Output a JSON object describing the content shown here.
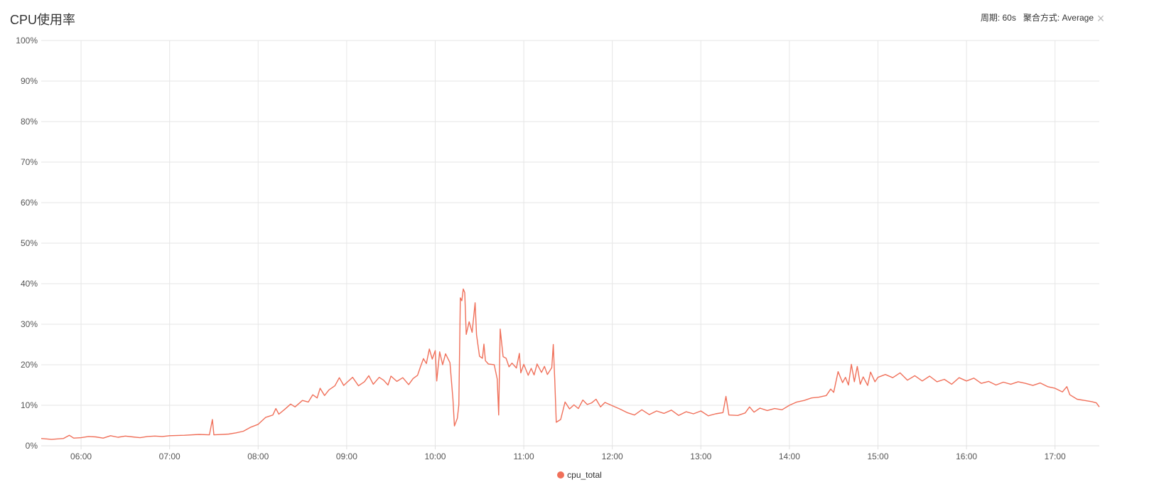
{
  "header": {
    "title": "CPU使用率",
    "period_label": "周期: 60s",
    "aggregation_label": "聚合方式: Average",
    "close_icon": "close-icon"
  },
  "chart_data": {
    "type": "line",
    "title": "CPU使用率",
    "xlabel": "",
    "ylabel": "",
    "y_ticks": [
      "0%",
      "10%",
      "20%",
      "30%",
      "40%",
      "50%",
      "60%",
      "70%",
      "80%",
      "90%",
      "100%"
    ],
    "ylim": [
      0,
      100
    ],
    "x_ticks": [
      "06:00",
      "07:00",
      "08:00",
      "09:00",
      "10:00",
      "11:00",
      "12:00",
      "13:00",
      "14:00",
      "15:00",
      "16:00",
      "17:00"
    ],
    "xlim": [
      "05:33",
      "17:30"
    ],
    "grid": true,
    "legend_position": "bottom",
    "series": [
      {
        "name": "cpu_total",
        "color": "#f0705a",
        "points": [
          [
            "05:33",
            1.8
          ],
          [
            "05:40",
            1.6
          ],
          [
            "05:48",
            1.8
          ],
          [
            "05:52",
            2.6
          ],
          [
            "05:55",
            1.9
          ],
          [
            "06:00",
            2.0
          ],
          [
            "06:05",
            2.3
          ],
          [
            "06:10",
            2.2
          ],
          [
            "06:15",
            1.9
          ],
          [
            "06:20",
            2.5
          ],
          [
            "06:25",
            2.1
          ],
          [
            "06:30",
            2.4
          ],
          [
            "06:35",
            2.2
          ],
          [
            "06:40",
            2.0
          ],
          [
            "06:45",
            2.3
          ],
          [
            "06:50",
            2.4
          ],
          [
            "06:55",
            2.3
          ],
          [
            "07:00",
            2.5
          ],
          [
            "07:10",
            2.6
          ],
          [
            "07:20",
            2.8
          ],
          [
            "07:27",
            2.7
          ],
          [
            "07:29",
            6.5
          ],
          [
            "07:30",
            2.7
          ],
          [
            "07:40",
            2.9
          ],
          [
            "07:45",
            3.2
          ],
          [
            "07:50",
            3.6
          ],
          [
            "07:55",
            4.6
          ],
          [
            "08:00",
            5.3
          ],
          [
            "08:05",
            7.0
          ],
          [
            "08:10",
            7.6
          ],
          [
            "08:12",
            9.2
          ],
          [
            "08:14",
            7.8
          ],
          [
            "08:18",
            9.0
          ],
          [
            "08:22",
            10.3
          ],
          [
            "08:25",
            9.6
          ],
          [
            "08:30",
            11.2
          ],
          [
            "08:34",
            10.8
          ],
          [
            "08:37",
            12.6
          ],
          [
            "08:40",
            11.8
          ],
          [
            "08:42",
            14.2
          ],
          [
            "08:45",
            12.4
          ],
          [
            "08:48",
            13.8
          ],
          [
            "08:52",
            14.8
          ],
          [
            "08:55",
            16.8
          ],
          [
            "08:58",
            14.9
          ],
          [
            "09:00",
            15.6
          ],
          [
            "09:04",
            16.9
          ],
          [
            "09:08",
            14.8
          ],
          [
            "09:12",
            15.8
          ],
          [
            "09:15",
            17.3
          ],
          [
            "09:18",
            15.2
          ],
          [
            "09:22",
            16.9
          ],
          [
            "09:25",
            16.2
          ],
          [
            "09:28",
            15.0
          ],
          [
            "09:30",
            17.2
          ],
          [
            "09:34",
            15.9
          ],
          [
            "09:38",
            16.8
          ],
          [
            "09:42",
            15.1
          ],
          [
            "09:45",
            16.6
          ],
          [
            "09:48",
            17.4
          ],
          [
            "09:50",
            19.5
          ],
          [
            "09:52",
            21.5
          ],
          [
            "09:54",
            20.3
          ],
          [
            "09:56",
            23.9
          ],
          [
            "09:58",
            21.4
          ],
          [
            "10:00",
            23.5
          ],
          [
            "10:01",
            16.0
          ],
          [
            "10:03",
            23.2
          ],
          [
            "10:05",
            20.0
          ],
          [
            "10:07",
            22.7
          ],
          [
            "10:10",
            20.5
          ],
          [
            "10:12",
            11.5
          ],
          [
            "10:13",
            4.9
          ],
          [
            "10:15",
            6.8
          ],
          [
            "10:16",
            10.1
          ],
          [
            "10:17",
            36.5
          ],
          [
            "10:18",
            35.8
          ],
          [
            "10:19",
            38.7
          ],
          [
            "10:20",
            37.8
          ],
          [
            "10:21",
            27.5
          ],
          [
            "10:23",
            30.6
          ],
          [
            "10:25",
            28.0
          ],
          [
            "10:27",
            35.3
          ],
          [
            "10:28",
            27.4
          ],
          [
            "10:30",
            22.1
          ],
          [
            "10:32",
            21.6
          ],
          [
            "10:33",
            25.1
          ],
          [
            "10:34",
            21.0
          ],
          [
            "10:36",
            20.2
          ],
          [
            "10:40",
            20.0
          ],
          [
            "10:42",
            16.5
          ],
          [
            "10:43",
            7.6
          ],
          [
            "10:44",
            28.8
          ],
          [
            "10:46",
            22.0
          ],
          [
            "10:48",
            21.6
          ],
          [
            "10:50",
            19.5
          ],
          [
            "10:52",
            20.4
          ],
          [
            "10:55",
            19.2
          ],
          [
            "10:57",
            22.8
          ],
          [
            "10:58",
            18.0
          ],
          [
            "11:00",
            20.1
          ],
          [
            "11:03",
            17.4
          ],
          [
            "11:05",
            19.1
          ],
          [
            "11:07",
            17.5
          ],
          [
            "11:09",
            20.2
          ],
          [
            "11:12",
            18.1
          ],
          [
            "11:14",
            19.6
          ],
          [
            "11:16",
            17.6
          ],
          [
            "11:19",
            19.3
          ],
          [
            "11:20",
            25.0
          ],
          [
            "11:21",
            16.2
          ],
          [
            "11:22",
            5.8
          ],
          [
            "11:25",
            6.5
          ],
          [
            "11:28",
            10.8
          ],
          [
            "11:31",
            9.1
          ],
          [
            "11:34",
            10.1
          ],
          [
            "11:37",
            9.2
          ],
          [
            "11:40",
            11.3
          ],
          [
            "11:43",
            10.2
          ],
          [
            "11:46",
            10.6
          ],
          [
            "11:49",
            11.5
          ],
          [
            "11:52",
            9.6
          ],
          [
            "11:55",
            10.7
          ],
          [
            "12:00",
            9.9
          ],
          [
            "12:05",
            9.1
          ],
          [
            "12:10",
            8.2
          ],
          [
            "12:15",
            7.6
          ],
          [
            "12:20",
            8.9
          ],
          [
            "12:25",
            7.7
          ],
          [
            "12:30",
            8.6
          ],
          [
            "12:35",
            8.0
          ],
          [
            "12:40",
            8.8
          ],
          [
            "12:45",
            7.5
          ],
          [
            "12:50",
            8.4
          ],
          [
            "12:55",
            7.9
          ],
          [
            "13:00",
            8.6
          ],
          [
            "13:05",
            7.4
          ],
          [
            "13:10",
            7.9
          ],
          [
            "13:15",
            8.2
          ],
          [
            "13:17",
            12.2
          ],
          [
            "13:19",
            7.6
          ],
          [
            "13:25",
            7.5
          ],
          [
            "13:30",
            8.1
          ],
          [
            "13:33",
            9.6
          ],
          [
            "13:36",
            8.3
          ],
          [
            "13:40",
            9.3
          ],
          [
            "13:45",
            8.7
          ],
          [
            "13:50",
            9.2
          ],
          [
            "13:55",
            8.9
          ],
          [
            "14:00",
            10.0
          ],
          [
            "14:05",
            10.8
          ],
          [
            "14:10",
            11.2
          ],
          [
            "14:15",
            11.8
          ],
          [
            "14:20",
            12.0
          ],
          [
            "14:25",
            12.4
          ],
          [
            "14:28",
            14.0
          ],
          [
            "14:30",
            13.2
          ],
          [
            "14:33",
            18.3
          ],
          [
            "14:36",
            15.6
          ],
          [
            "14:38",
            16.9
          ],
          [
            "14:40",
            15.0
          ],
          [
            "14:42",
            20.1
          ],
          [
            "14:44",
            15.8
          ],
          [
            "14:46",
            19.6
          ],
          [
            "14:48",
            15.2
          ],
          [
            "14:50",
            17.0
          ],
          [
            "14:53",
            14.9
          ],
          [
            "14:55",
            18.2
          ],
          [
            "14:58",
            15.8
          ],
          [
            "15:00",
            16.9
          ],
          [
            "15:05",
            17.6
          ],
          [
            "15:10",
            16.8
          ],
          [
            "15:15",
            18.0
          ],
          [
            "15:20",
            16.2
          ],
          [
            "15:25",
            17.3
          ],
          [
            "15:30",
            16.0
          ],
          [
            "15:35",
            17.2
          ],
          [
            "15:40",
            15.8
          ],
          [
            "15:45",
            16.4
          ],
          [
            "15:50",
            15.2
          ],
          [
            "15:55",
            16.8
          ],
          [
            "16:00",
            16.0
          ],
          [
            "16:05",
            16.7
          ],
          [
            "16:10",
            15.4
          ],
          [
            "16:15",
            15.9
          ],
          [
            "16:20",
            15.0
          ],
          [
            "16:25",
            15.7
          ],
          [
            "16:30",
            15.2
          ],
          [
            "16:35",
            15.8
          ],
          [
            "16:40",
            15.4
          ],
          [
            "16:45",
            14.9
          ],
          [
            "16:50",
            15.5
          ],
          [
            "16:55",
            14.6
          ],
          [
            "17:00",
            14.2
          ],
          [
            "17:05",
            13.3
          ],
          [
            "17:08",
            14.6
          ],
          [
            "17:10",
            12.6
          ],
          [
            "17:15",
            11.5
          ],
          [
            "17:20",
            11.2
          ],
          [
            "17:25",
            10.9
          ],
          [
            "17:28",
            10.6
          ],
          [
            "17:30",
            9.6
          ]
        ]
      }
    ]
  }
}
